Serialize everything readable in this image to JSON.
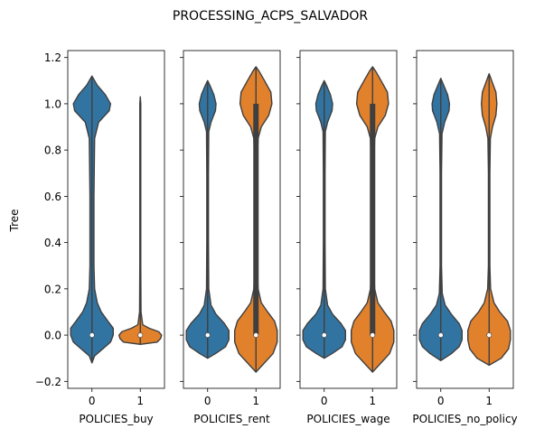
{
  "figure_title": "PROCESSING_ACPS_SALVADOR",
  "chart_data": {
    "type": "violin",
    "title": "PROCESSING_ACPS_SALVADOR",
    "ylabel": "Tree",
    "ylim": [
      -0.23,
      1.23
    ],
    "yticks": [
      -0.2,
      0.0,
      0.2,
      0.4,
      0.6,
      0.8,
      1.0,
      1.2
    ],
    "ytick_labels": [
      "−0.2",
      "0.0",
      "0.2",
      "0.4",
      "0.6",
      "0.8",
      "1.0",
      "1.2"
    ],
    "categories": [
      "0",
      "1"
    ],
    "colors": {
      "0": "#3274a1",
      "1": "#e1812c"
    },
    "panels": [
      {
        "xlabel": "POLICIES_buy",
        "violins": [
          {
            "category": "0",
            "min": -0.12,
            "max": 1.12,
            "median": 0.0,
            "q1": 0.0,
            "q3": 0.0,
            "profile": [
              [
                -0.12,
                0
              ],
              [
                -0.09,
                0.02
              ],
              [
                -0.06,
                0.08
              ],
              [
                -0.03,
                0.14
              ],
              [
                0.0,
                0.16
              ],
              [
                0.03,
                0.16
              ],
              [
                0.06,
                0.12
              ],
              [
                0.1,
                0.07
              ],
              [
                0.14,
                0.04
              ],
              [
                0.2,
                0.02
              ],
              [
                0.3,
                0.015
              ],
              [
                0.6,
                0.015
              ],
              [
                0.85,
                0.02
              ],
              [
                0.92,
                0.05
              ],
              [
                0.97,
                0.13
              ],
              [
                1.0,
                0.14
              ],
              [
                1.04,
                0.1
              ],
              [
                1.08,
                0.04
              ],
              [
                1.12,
                0
              ]
            ]
          },
          {
            "category": "1",
            "min": -0.04,
            "max": 1.03,
            "median": 0.0,
            "q1": 0.0,
            "q3": 0.0,
            "profile": [
              [
                -0.04,
                0
              ],
              [
                -0.03,
                0.35
              ],
              [
                -0.015,
                0.42
              ],
              [
                0.0,
                0.44
              ],
              [
                0.015,
                0.38
              ],
              [
                0.03,
                0.18
              ],
              [
                0.045,
                0.05
              ],
              [
                0.1,
                0.015
              ],
              [
                0.3,
                0.01
              ],
              [
                0.7,
                0.01
              ],
              [
                0.95,
                0.01
              ],
              [
                1.0,
                0.01
              ],
              [
                1.03,
                0
              ]
            ]
          }
        ]
      },
      {
        "xlabel": "POLICIES_rent",
        "violins": [
          {
            "category": "0",
            "min": -0.1,
            "max": 1.1,
            "median": 0.0,
            "q1": 0.0,
            "q3": 0.0,
            "profile": [
              [
                -0.1,
                0
              ],
              [
                -0.08,
                0.14
              ],
              [
                -0.05,
                0.32
              ],
              [
                -0.02,
                0.38
              ],
              [
                0.02,
                0.38
              ],
              [
                0.05,
                0.3
              ],
              [
                0.09,
                0.15
              ],
              [
                0.13,
                0.06
              ],
              [
                0.2,
                0.02
              ],
              [
                0.4,
                0.015
              ],
              [
                0.7,
                0.015
              ],
              [
                0.88,
                0.02
              ],
              [
                0.92,
                0.06
              ],
              [
                0.97,
                0.14
              ],
              [
                1.0,
                0.15
              ],
              [
                1.04,
                0.11
              ],
              [
                1.08,
                0.04
              ],
              [
                1.1,
                0
              ]
            ]
          },
          {
            "category": "1",
            "min": -0.16,
            "max": 1.16,
            "median": 0.0,
            "q1": 0.0,
            "q3": 1.0,
            "profile": [
              [
                -0.16,
                0
              ],
              [
                -0.13,
                0.12
              ],
              [
                -0.08,
                0.32
              ],
              [
                -0.03,
                0.4
              ],
              [
                0.02,
                0.4
              ],
              [
                0.06,
                0.35
              ],
              [
                0.1,
                0.22
              ],
              [
                0.14,
                0.1
              ],
              [
                0.2,
                0.04
              ],
              [
                0.3,
                0.02
              ],
              [
                0.7,
                0.02
              ],
              [
                0.85,
                0.04
              ],
              [
                0.9,
                0.1
              ],
              [
                0.95,
                0.24
              ],
              [
                1.0,
                0.3
              ],
              [
                1.05,
                0.28
              ],
              [
                1.1,
                0.16
              ],
              [
                1.14,
                0.06
              ],
              [
                1.16,
                0
              ]
            ]
          }
        ]
      },
      {
        "xlabel": "POLICIES_wage",
        "violins": [
          {
            "category": "0",
            "min": -0.1,
            "max": 1.1,
            "median": 0.0,
            "q1": 0.0,
            "q3": 0.0,
            "profile": [
              [
                -0.1,
                0
              ],
              [
                -0.08,
                0.14
              ],
              [
                -0.05,
                0.32
              ],
              [
                -0.02,
                0.38
              ],
              [
                0.02,
                0.38
              ],
              [
                0.05,
                0.3
              ],
              [
                0.09,
                0.15
              ],
              [
                0.13,
                0.06
              ],
              [
                0.2,
                0.02
              ],
              [
                0.4,
                0.015
              ],
              [
                0.7,
                0.015
              ],
              [
                0.88,
                0.02
              ],
              [
                0.92,
                0.06
              ],
              [
                0.97,
                0.14
              ],
              [
                1.0,
                0.15
              ],
              [
                1.04,
                0.11
              ],
              [
                1.08,
                0.04
              ],
              [
                1.1,
                0
              ]
            ]
          },
          {
            "category": "1",
            "min": -0.16,
            "max": 1.16,
            "median": 0.0,
            "q1": 0.0,
            "q3": 1.0,
            "profile": [
              [
                -0.16,
                0
              ],
              [
                -0.13,
                0.12
              ],
              [
                -0.08,
                0.32
              ],
              [
                -0.03,
                0.4
              ],
              [
                0.02,
                0.4
              ],
              [
                0.06,
                0.35
              ],
              [
                0.1,
                0.22
              ],
              [
                0.14,
                0.1
              ],
              [
                0.2,
                0.04
              ],
              [
                0.3,
                0.02
              ],
              [
                0.7,
                0.02
              ],
              [
                0.85,
                0.04
              ],
              [
                0.9,
                0.1
              ],
              [
                0.95,
                0.24
              ],
              [
                1.0,
                0.3
              ],
              [
                1.05,
                0.28
              ],
              [
                1.1,
                0.16
              ],
              [
                1.14,
                0.06
              ],
              [
                1.16,
                0
              ]
            ]
          }
        ]
      },
      {
        "xlabel": "POLICIES_no_policy",
        "violins": [
          {
            "category": "0",
            "min": -0.11,
            "max": 1.11,
            "median": 0.0,
            "q1": 0.0,
            "q3": 0.0,
            "profile": [
              [
                -0.11,
                0
              ],
              [
                -0.08,
                0.22
              ],
              [
                -0.05,
                0.38
              ],
              [
                -0.02,
                0.44
              ],
              [
                0.02,
                0.44
              ],
              [
                0.05,
                0.38
              ],
              [
                0.09,
                0.22
              ],
              [
                0.13,
                0.09
              ],
              [
                0.18,
                0.03
              ],
              [
                0.3,
                0.015
              ],
              [
                0.7,
                0.015
              ],
              [
                0.87,
                0.025
              ],
              [
                0.92,
                0.08
              ],
              [
                0.97,
                0.17
              ],
              [
                1.0,
                0.18
              ],
              [
                1.04,
                0.14
              ],
              [
                1.08,
                0.06
              ],
              [
                1.11,
                0
              ]
            ]
          },
          {
            "category": "1",
            "min": -0.13,
            "max": 1.13,
            "median": 0.0,
            "q1": 0.0,
            "q3": 0.0,
            "profile": [
              [
                -0.13,
                0
              ],
              [
                -0.1,
                0.25
              ],
              [
                -0.06,
                0.4
              ],
              [
                -0.02,
                0.44
              ],
              [
                0.02,
                0.44
              ],
              [
                0.06,
                0.38
              ],
              [
                0.1,
                0.22
              ],
              [
                0.14,
                0.1
              ],
              [
                0.2,
                0.03
              ],
              [
                0.3,
                0.015
              ],
              [
                0.7,
                0.015
              ],
              [
                0.85,
                0.025
              ],
              [
                0.9,
                0.07
              ],
              [
                0.95,
                0.14
              ],
              [
                1.0,
                0.16
              ],
              [
                1.05,
                0.14
              ],
              [
                1.09,
                0.07
              ],
              [
                1.13,
                0
              ]
            ]
          }
        ]
      }
    ]
  }
}
